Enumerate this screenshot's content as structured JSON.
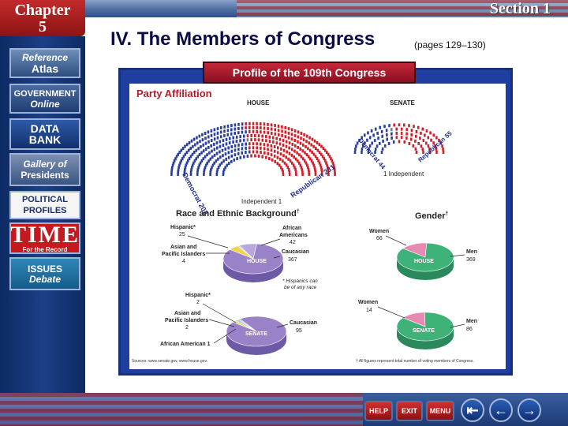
{
  "header": {
    "chapter_word": "Chapter",
    "chapter_number": "5",
    "section": "Section 1"
  },
  "title": "IV. The Members of Congress",
  "pages_ref": "(pages 129–130)",
  "sidebar": [
    {
      "line1": "Reference",
      "line2": "Atlas"
    },
    {
      "line1": "GOVERNMENT",
      "line2": "Online"
    },
    {
      "line1": "DATA",
      "line2": "BANK"
    },
    {
      "line1": "Gallery of",
      "line2": "Presidents"
    },
    {
      "line1": "POLITICAL",
      "line2": "PROFILES"
    },
    {
      "line1": "TIME",
      "line2": "For the Record"
    },
    {
      "line1": "ISSUES",
      "line2": "Debate"
    }
  ],
  "figure": {
    "banner": "Profile of the 109th Congress",
    "party_title": "Party Affiliation",
    "house_label": "HOUSE",
    "senate_label": "SENATE",
    "house_dem": "Democrat 202",
    "house_rep": "Republican 231",
    "house_ind": "Independent 1",
    "senate_dem": "Democrat 44",
    "senate_rep": "Republican 55",
    "senate_ind": "1 Independent",
    "race_title": "Race and Ethnic Background",
    "race_mark": "†",
    "gender_title": "Gender",
    "gender_mark": "†",
    "h_hispanic": "Hispanic*",
    "h_hispanic_n": "25",
    "h_asian": "Asian and",
    "h_asian2": "Pacific Islanders",
    "h_asian_n": "4",
    "h_african": "African",
    "h_african2": "Americans",
    "h_african_n": "42",
    "h_caucasian": "Caucasian",
    "h_caucasian_n": "367",
    "pie_house": "HOUSE",
    "pie_senate": "SENATE",
    "hisp_note1": "* Hispanics can",
    "hisp_note2": "be of any race",
    "s_hispanic": "Hispanic*",
    "s_hispanic_n": "2",
    "s_asian": "Asian and",
    "s_asian2": "Pacific Islanders",
    "s_asian_n": "2",
    "s_african": "African American 1",
    "s_caucasian": "Caucasian",
    "s_caucasian_n": "95",
    "h_women": "Women",
    "h_women_n": "66",
    "h_men": "Men",
    "h_men_n": "369",
    "s_women": "Women",
    "s_women_n": "14",
    "s_men": "Men",
    "s_men_n": "86",
    "source": "Sources: www.senate.gov, www.house.gov.",
    "footnote": "† All figures represent total number of voting members of Congress."
  },
  "nav": {
    "help": "HELP",
    "exit": "EXIT",
    "menu": "MENU",
    "first": "⇤",
    "back": "←",
    "next": "→"
  },
  "colors": {
    "democrat": "#2a3f9e",
    "republican": "#d0202a",
    "pie_purple": "#9a82c9",
    "pie_green": "#3fb27a",
    "pie_pink": "#e889b1"
  }
}
